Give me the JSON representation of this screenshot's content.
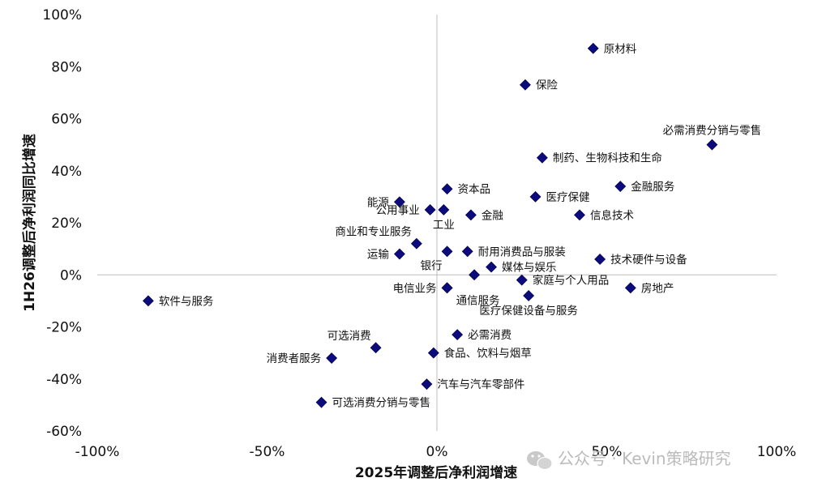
{
  "chart_data": {
    "type": "scatter",
    "title": "",
    "xlabel": "2025年调整后净利润增速",
    "ylabel": "1H26调整后净利润同比增速",
    "xlim": [
      -1.0,
      1.0
    ],
    "ylim": [
      -0.6,
      1.0
    ],
    "x_ticks": [
      -1.0,
      -0.5,
      0.0,
      0.5,
      1.0
    ],
    "x_tick_labels": [
      "-100%",
      "-50%",
      "0%",
      "50%",
      "100%"
    ],
    "y_ticks": [
      -0.6,
      -0.4,
      -0.2,
      0.0,
      0.2,
      0.4,
      0.6,
      0.8,
      1.0
    ],
    "y_tick_labels": [
      "-60%",
      "-40%",
      "-20%",
      "0%",
      "20%",
      "40%",
      "60%",
      "80%",
      "100%"
    ],
    "grid": false,
    "legend": "none",
    "marker_color": "#0b0b7d",
    "points": [
      {
        "label": "原材料",
        "x": 0.46,
        "y": 0.87,
        "label_pos": "right"
      },
      {
        "label": "保险",
        "x": 0.26,
        "y": 0.73,
        "label_pos": "right"
      },
      {
        "label": "必需消费分销与零售",
        "x": 0.81,
        "y": 0.5,
        "label_pos": "above"
      },
      {
        "label": "制药、生物科技和生命",
        "x": 0.31,
        "y": 0.45,
        "label_pos": "right"
      },
      {
        "label": "金融服务",
        "x": 0.54,
        "y": 0.34,
        "label_pos": "right"
      },
      {
        "label": "资本品",
        "x": 0.03,
        "y": 0.33,
        "label_pos": "right"
      },
      {
        "label": "医疗保健",
        "x": 0.29,
        "y": 0.3,
        "label_pos": "right"
      },
      {
        "label": "能源",
        "x": -0.11,
        "y": 0.28,
        "label_pos": "left"
      },
      {
        "label": "公用事业",
        "x": -0.02,
        "y": 0.25,
        "label_pos": "left"
      },
      {
        "label": "工业",
        "x": 0.02,
        "y": 0.25,
        "label_pos": "below"
      },
      {
        "label": "金融",
        "x": 0.1,
        "y": 0.23,
        "label_pos": "right"
      },
      {
        "label": "信息技术",
        "x": 0.42,
        "y": 0.23,
        "label_pos": "right"
      },
      {
        "label": "商业和专业服务",
        "x": -0.06,
        "y": 0.12,
        "label_pos": "above-left"
      },
      {
        "label": "运输",
        "x": -0.11,
        "y": 0.08,
        "label_pos": "left"
      },
      {
        "label": "银行",
        "x": 0.03,
        "y": 0.09,
        "label_pos": "below-left"
      },
      {
        "label": "耐用消费品与服装",
        "x": 0.09,
        "y": 0.09,
        "label_pos": "right"
      },
      {
        "label": "技术硬件与设备",
        "x": 0.48,
        "y": 0.06,
        "label_pos": "right"
      },
      {
        "label": "媒体与娱乐",
        "x": 0.16,
        "y": 0.03,
        "label_pos": "right"
      },
      {
        "label": "银行",
        "x": 0.11,
        "y": 0.0,
        "label_pos": "none"
      },
      {
        "label": "家庭与个人用品",
        "x": 0.25,
        "y": -0.02,
        "label_pos": "right"
      },
      {
        "label": "电信业务",
        "x": 0.03,
        "y": -0.05,
        "label_pos": "left"
      },
      {
        "label": "通信服务",
        "x": 0.03,
        "y": -0.05,
        "label_pos": "below-right"
      },
      {
        "label": "房地产",
        "x": 0.57,
        "y": -0.05,
        "label_pos": "right"
      },
      {
        "label": "医疗保健设备与服务",
        "x": 0.27,
        "y": -0.08,
        "label_pos": "below"
      },
      {
        "label": "软件与服务",
        "x": -0.85,
        "y": -0.1,
        "label_pos": "right"
      },
      {
        "label": "必需消费",
        "x": 0.06,
        "y": -0.23,
        "label_pos": "right"
      },
      {
        "label": "可选消费",
        "x": -0.18,
        "y": -0.28,
        "label_pos": "above-left"
      },
      {
        "label": "食品、饮料与烟草",
        "x": -0.01,
        "y": -0.3,
        "label_pos": "right"
      },
      {
        "label": "消费者服务",
        "x": -0.31,
        "y": -0.32,
        "label_pos": "left"
      },
      {
        "label": "汽车与汽车零部件",
        "x": -0.03,
        "y": -0.42,
        "label_pos": "right"
      },
      {
        "label": "可选消费分销与零售",
        "x": -0.34,
        "y": -0.49,
        "label_pos": "right"
      }
    ]
  },
  "watermark": {
    "text": "公众号 · Kevin策略研究",
    "icon": "wechat-icon"
  }
}
